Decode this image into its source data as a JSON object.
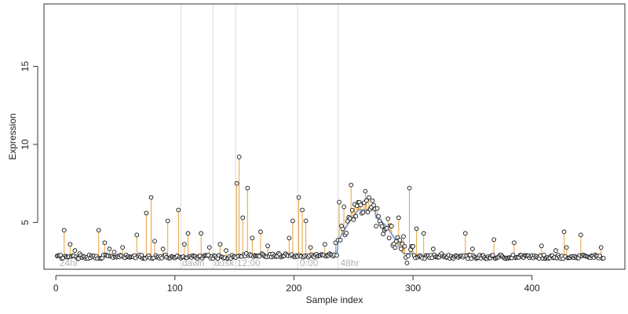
{
  "chart_data": {
    "type": "scatter",
    "title": "",
    "xlabel": "Sample index",
    "ylabel": "Expression",
    "xlim": [
      -10,
      478
    ],
    "ylim": [
      2.0,
      19.0
    ],
    "x_ticks": [
      0,
      100,
      200,
      300,
      400
    ],
    "y_ticks": [
      5,
      10,
      15
    ],
    "grid": false,
    "legend": "none",
    "colors": {
      "points": "#111111",
      "stems": "#e8a33a",
      "fitted_line": "#7ba3d9",
      "region_dividers": "#dcdcdc",
      "region_labels": "#b3b3b3"
    },
    "region_labels": [
      {
        "label": "24hr",
        "x": 3
      },
      {
        "label": "dawn",
        "x": 106
      },
      {
        "label": "dusk",
        "x": 133
      },
      {
        "label": "12:00",
        "x": 152
      },
      {
        "label": "0:00",
        "x": 205
      },
      {
        "label": "48hr",
        "x": 239
      }
    ],
    "region_dividers": [
      105,
      132,
      151,
      203,
      237
    ],
    "segments": [
      {
        "x0": 1,
        "x1": 105,
        "baseline": 2.8
      },
      {
        "x0": 106,
        "x1": 132,
        "baseline": 2.8
      },
      {
        "x0": 133,
        "x1": 151,
        "baseline": 2.8
      },
      {
        "x0": 152,
        "x1": 203,
        "baseline": 2.9
      },
      {
        "x0": 204,
        "x1": 237,
        "baseline": 2.9
      },
      {
        "x0": 238,
        "x1": 460,
        "baseline": 2.8
      }
    ],
    "peaks": [
      {
        "x": 7,
        "y": 4.5
      },
      {
        "x": 12,
        "y": 3.6
      },
      {
        "x": 16,
        "y": 3.2
      },
      {
        "x": 20,
        "y": 3.0
      },
      {
        "x": 36,
        "y": 4.5
      },
      {
        "x": 41,
        "y": 3.7
      },
      {
        "x": 45,
        "y": 3.3
      },
      {
        "x": 49,
        "y": 3.1
      },
      {
        "x": 56,
        "y": 3.4
      },
      {
        "x": 68,
        "y": 4.2
      },
      {
        "x": 76,
        "y": 5.6
      },
      {
        "x": 80,
        "y": 6.6
      },
      {
        "x": 83,
        "y": 3.8
      },
      {
        "x": 90,
        "y": 3.3
      },
      {
        "x": 94,
        "y": 5.1
      },
      {
        "x": 103,
        "y": 5.8
      },
      {
        "x": 108,
        "y": 3.6
      },
      {
        "x": 111,
        "y": 4.3
      },
      {
        "x": 122,
        "y": 4.3
      },
      {
        "x": 129,
        "y": 3.4
      },
      {
        "x": 138,
        "y": 3.6
      },
      {
        "x": 143,
        "y": 3.2
      },
      {
        "x": 152,
        "y": 7.5
      },
      {
        "x": 154,
        "y": 9.2
      },
      {
        "x": 157,
        "y": 5.3
      },
      {
        "x": 161,
        "y": 7.2
      },
      {
        "x": 165,
        "y": 4.0
      },
      {
        "x": 172,
        "y": 4.4
      },
      {
        "x": 178,
        "y": 3.5
      },
      {
        "x": 196,
        "y": 4.0
      },
      {
        "x": 199,
        "y": 5.1
      },
      {
        "x": 204,
        "y": 6.6
      },
      {
        "x": 207,
        "y": 5.8
      },
      {
        "x": 210,
        "y": 5.1
      },
      {
        "x": 214,
        "y": 3.4
      },
      {
        "x": 226,
        "y": 3.6
      },
      {
        "x": 235,
        "y": 3.7
      },
      {
        "x": 238,
        "y": 6.3
      },
      {
        "x": 242,
        "y": 6.0
      },
      {
        "x": 248,
        "y": 7.4
      },
      {
        "x": 252,
        "y": 5.4
      },
      {
        "x": 260,
        "y": 7.0
      },
      {
        "x": 263,
        "y": 6.6
      },
      {
        "x": 267,
        "y": 6.1
      },
      {
        "x": 270,
        "y": 5.9
      },
      {
        "x": 273,
        "y": 4.9
      },
      {
        "x": 276,
        "y": 4.5
      },
      {
        "x": 280,
        "y": 4.0
      },
      {
        "x": 288,
        "y": 5.3
      },
      {
        "x": 292,
        "y": 4.1
      },
      {
        "x": 297,
        "y": 7.2
      },
      {
        "x": 303,
        "y": 4.6
      },
      {
        "x": 309,
        "y": 4.3
      },
      {
        "x": 317,
        "y": 3.3
      },
      {
        "x": 324,
        "y": 3.0
      },
      {
        "x": 344,
        "y": 4.3
      },
      {
        "x": 350,
        "y": 3.3
      },
      {
        "x": 368,
        "y": 3.9
      },
      {
        "x": 385,
        "y": 3.7
      },
      {
        "x": 408,
        "y": 3.5
      },
      {
        "x": 420,
        "y": 3.2
      },
      {
        "x": 427,
        "y": 4.4
      },
      {
        "x": 429,
        "y": 3.4
      },
      {
        "x": 441,
        "y": 4.2
      },
      {
        "x": 458,
        "y": 3.4
      }
    ],
    "elevated_block": {
      "x0": 237,
      "x1": 300,
      "low": 3.0,
      "high": 5.8
    },
    "n_points": 460
  }
}
